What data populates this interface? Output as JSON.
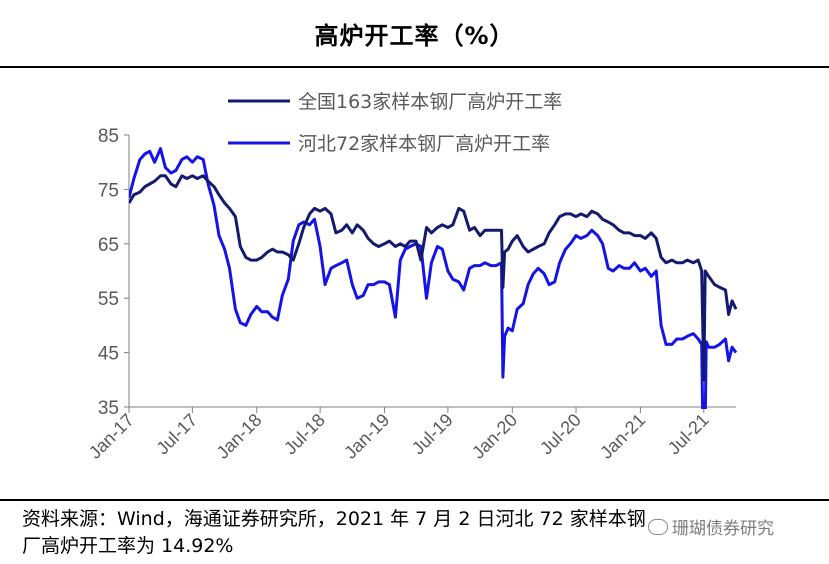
{
  "title": "高炉开工率（%）",
  "source_note_line1": "资料来源：Wind，海通证券研究所，2021 年 7 月 2 日河北 72 家样本钢",
  "source_note_line2": "厂高炉开工率为 14.92%",
  "watermark": "珊瑚债券研究",
  "colors": {
    "series1": "#141a6e",
    "series2": "#1414e6",
    "axis": "#7f7f7f",
    "text": "#595959"
  },
  "chart_data": {
    "type": "line",
    "title": "高炉开工率（%）",
    "xlabel": "",
    "ylabel": "",
    "ylim": [
      35,
      85
    ],
    "yticks": [
      35,
      45,
      55,
      65,
      75,
      85
    ],
    "xlim": [
      "2017-01",
      "2021-10"
    ],
    "xticks": [
      "Jan-17",
      "Jul-17",
      "Jan-18",
      "Jul-18",
      "Jan-19",
      "Jul-19",
      "Jan-20",
      "Jul-20",
      "Jan-21",
      "Jul-21"
    ],
    "legend": "top-center",
    "grid": false,
    "series": [
      {
        "name": "全国163家样本钢厂高炉开工率",
        "points": [
          [
            "2017-01-01",
            72.5
          ],
          [
            "2017-01-15",
            74.0
          ],
          [
            "2017-02-01",
            74.5
          ],
          [
            "2017-02-15",
            75.5
          ],
          [
            "2017-03-01",
            76.0
          ],
          [
            "2017-03-15",
            76.5
          ],
          [
            "2017-04-01",
            77.5
          ],
          [
            "2017-04-15",
            77.5
          ],
          [
            "2017-05-01",
            76.0
          ],
          [
            "2017-05-15",
            75.5
          ],
          [
            "2017-06-01",
            77.5
          ],
          [
            "2017-06-15",
            77.0
          ],
          [
            "2017-07-01",
            77.5
          ],
          [
            "2017-07-15",
            77.0
          ],
          [
            "2017-08-01",
            77.5
          ],
          [
            "2017-08-15",
            76.5
          ],
          [
            "2017-09-01",
            75.5
          ],
          [
            "2017-09-15",
            74.0
          ],
          [
            "2017-10-01",
            72.5
          ],
          [
            "2017-10-15",
            71.5
          ],
          [
            "2017-11-01",
            70.0
          ],
          [
            "2017-11-15",
            64.5
          ],
          [
            "2017-12-01",
            62.5
          ],
          [
            "2017-12-15",
            62.0
          ],
          [
            "2018-01-01",
            62.0
          ],
          [
            "2018-01-15",
            62.5
          ],
          [
            "2018-02-01",
            63.5
          ],
          [
            "2018-02-15",
            64.0
          ],
          [
            "2018-03-01",
            63.5
          ],
          [
            "2018-03-15",
            63.5
          ],
          [
            "2018-04-01",
            63.0
          ],
          [
            "2018-04-15",
            62.0
          ],
          [
            "2018-05-01",
            65.0
          ],
          [
            "2018-05-15",
            68.0
          ],
          [
            "2018-06-01",
            70.5
          ],
          [
            "2018-06-15",
            71.5
          ],
          [
            "2018-07-01",
            71.0
          ],
          [
            "2018-07-15",
            71.5
          ],
          [
            "2018-08-01",
            70.5
          ],
          [
            "2018-08-15",
            67.0
          ],
          [
            "2018-09-01",
            67.5
          ],
          [
            "2018-09-15",
            68.5
          ],
          [
            "2018-10-01",
            67.0
          ],
          [
            "2018-10-15",
            68.5
          ],
          [
            "2018-11-01",
            67.5
          ],
          [
            "2018-11-15",
            66.0
          ],
          [
            "2018-12-01",
            65.0
          ],
          [
            "2018-12-15",
            64.5
          ],
          [
            "2019-01-01",
            65.0
          ],
          [
            "2019-01-15",
            65.5
          ],
          [
            "2019-02-01",
            64.5
          ],
          [
            "2019-02-15",
            65.0
          ],
          [
            "2019-03-01",
            64.5
          ],
          [
            "2019-03-15",
            65.5
          ],
          [
            "2019-04-01",
            65.5
          ],
          [
            "2019-04-15",
            62.0
          ],
          [
            "2019-05-01",
            68.0
          ],
          [
            "2019-05-15",
            67.0
          ],
          [
            "2019-06-01",
            68.0
          ],
          [
            "2019-06-15",
            68.5
          ],
          [
            "2019-07-01",
            68.0
          ],
          [
            "2019-07-15",
            68.5
          ],
          [
            "2019-08-01",
            71.5
          ],
          [
            "2019-08-15",
            71.0
          ],
          [
            "2019-09-01",
            67.5
          ],
          [
            "2019-09-15",
            68.0
          ],
          [
            "2019-10-01",
            66.5
          ],
          [
            "2019-10-15",
            67.5
          ],
          [
            "2019-11-01",
            67.5
          ],
          [
            "2019-11-15",
            67.5
          ],
          [
            "2019-12-01",
            67.5
          ],
          [
            "2019-12-05",
            57.0
          ],
          [
            "2019-12-10",
            63.5
          ],
          [
            "2019-12-20",
            64.0
          ],
          [
            "2020-01-01",
            65.5
          ],
          [
            "2020-01-15",
            66.5
          ],
          [
            "2020-02-01",
            64.5
          ],
          [
            "2020-02-15",
            63.5
          ],
          [
            "2020-03-01",
            64.0
          ],
          [
            "2020-03-15",
            64.5
          ],
          [
            "2020-04-01",
            65.0
          ],
          [
            "2020-04-15",
            67.0
          ],
          [
            "2020-05-01",
            68.5
          ],
          [
            "2020-05-15",
            70.0
          ],
          [
            "2020-06-01",
            70.5
          ],
          [
            "2020-06-15",
            70.5
          ],
          [
            "2020-07-01",
            70.0
          ],
          [
            "2020-07-15",
            70.5
          ],
          [
            "2020-08-01",
            70.0
          ],
          [
            "2020-08-15",
            71.0
          ],
          [
            "2020-09-01",
            70.5
          ],
          [
            "2020-09-15",
            69.5
          ],
          [
            "2020-10-01",
            69.0
          ],
          [
            "2020-10-15",
            68.5
          ],
          [
            "2020-11-01",
            67.5
          ],
          [
            "2020-11-15",
            67.0
          ],
          [
            "2020-12-01",
            67.0
          ],
          [
            "2020-12-15",
            66.5
          ],
          [
            "2021-01-01",
            66.5
          ],
          [
            "2021-01-15",
            66.0
          ],
          [
            "2021-02-01",
            67.0
          ],
          [
            "2021-02-15",
            66.0
          ],
          [
            "2021-03-01",
            62.5
          ],
          [
            "2021-03-15",
            61.5
          ],
          [
            "2021-04-01",
            62.0
          ],
          [
            "2021-04-15",
            61.5
          ],
          [
            "2021-05-01",
            61.5
          ],
          [
            "2021-05-15",
            62.0
          ],
          [
            "2021-06-01",
            61.5
          ],
          [
            "2021-06-15",
            62.0
          ],
          [
            "2021-06-25",
            60.0
          ],
          [
            "2021-07-01",
            40.0
          ],
          [
            "2021-07-05",
            60.0
          ],
          [
            "2021-07-15",
            59.0
          ],
          [
            "2021-08-01",
            57.5
          ],
          [
            "2021-08-15",
            57.0
          ],
          [
            "2021-09-01",
            56.5
          ],
          [
            "2021-09-10",
            52.0
          ],
          [
            "2021-09-20",
            54.5
          ],
          [
            "2021-10-01",
            53.0
          ]
        ]
      },
      {
        "name": "河北72家样本钢厂高炉开工率",
        "points": [
          [
            "2017-01-01",
            73.5
          ],
          [
            "2017-01-15",
            77.0
          ],
          [
            "2017-02-01",
            80.5
          ],
          [
            "2017-02-15",
            81.5
          ],
          [
            "2017-03-01",
            82.0
          ],
          [
            "2017-03-15",
            80.0
          ],
          [
            "2017-04-01",
            82.5
          ],
          [
            "2017-04-15",
            79.0
          ],
          [
            "2017-05-01",
            78.0
          ],
          [
            "2017-05-15",
            78.5
          ],
          [
            "2017-06-01",
            80.5
          ],
          [
            "2017-06-15",
            81.0
          ],
          [
            "2017-07-01",
            80.0
          ],
          [
            "2017-07-15",
            81.0
          ],
          [
            "2017-08-01",
            80.5
          ],
          [
            "2017-08-15",
            76.0
          ],
          [
            "2017-09-01",
            72.0
          ],
          [
            "2017-09-15",
            66.5
          ],
          [
            "2017-10-01",
            64.0
          ],
          [
            "2017-10-15",
            60.5
          ],
          [
            "2017-11-01",
            53.0
          ],
          [
            "2017-11-15",
            50.5
          ],
          [
            "2017-12-01",
            50.0
          ],
          [
            "2017-12-15",
            52.0
          ],
          [
            "2018-01-01",
            53.5
          ],
          [
            "2018-01-15",
            52.5
          ],
          [
            "2018-02-01",
            52.5
          ],
          [
            "2018-02-15",
            51.5
          ],
          [
            "2018-03-01",
            51.0
          ],
          [
            "2018-03-15",
            55.5
          ],
          [
            "2018-04-01",
            58.5
          ],
          [
            "2018-04-15",
            65.5
          ],
          [
            "2018-05-01",
            68.5
          ],
          [
            "2018-05-15",
            69.0
          ],
          [
            "2018-06-01",
            68.5
          ],
          [
            "2018-06-15",
            69.5
          ],
          [
            "2018-07-01",
            64.5
          ],
          [
            "2018-07-15",
            57.5
          ],
          [
            "2018-08-01",
            60.5
          ],
          [
            "2018-08-15",
            61.0
          ],
          [
            "2018-09-01",
            61.5
          ],
          [
            "2018-09-15",
            62.0
          ],
          [
            "2018-10-01",
            57.5
          ],
          [
            "2018-10-15",
            55.0
          ],
          [
            "2018-11-01",
            55.5
          ],
          [
            "2018-11-15",
            57.5
          ],
          [
            "2018-12-01",
            57.5
          ],
          [
            "2018-12-15",
            58.0
          ],
          [
            "2019-01-01",
            58.0
          ],
          [
            "2019-01-15",
            57.5
          ],
          [
            "2019-02-01",
            51.5
          ],
          [
            "2019-02-15",
            62.0
          ],
          [
            "2019-03-01",
            64.0
          ],
          [
            "2019-03-15",
            64.5
          ],
          [
            "2019-04-01",
            65.0
          ],
          [
            "2019-04-15",
            64.5
          ],
          [
            "2019-05-01",
            55.0
          ],
          [
            "2019-05-15",
            61.5
          ],
          [
            "2019-06-01",
            64.5
          ],
          [
            "2019-06-15",
            64.0
          ],
          [
            "2019-07-01",
            60.0
          ],
          [
            "2019-07-15",
            58.5
          ],
          [
            "2019-08-01",
            58.0
          ],
          [
            "2019-08-15",
            56.5
          ],
          [
            "2019-09-01",
            60.5
          ],
          [
            "2019-09-15",
            61.0
          ],
          [
            "2019-10-01",
            61.0
          ],
          [
            "2019-10-15",
            61.5
          ],
          [
            "2019-11-01",
            61.0
          ],
          [
            "2019-11-15",
            61.0
          ],
          [
            "2019-12-01",
            61.5
          ],
          [
            "2019-12-05",
            40.5
          ],
          [
            "2019-12-10",
            48.0
          ],
          [
            "2019-12-20",
            49.5
          ],
          [
            "2020-01-01",
            49.0
          ],
          [
            "2020-01-15",
            53.0
          ],
          [
            "2020-02-01",
            54.0
          ],
          [
            "2020-02-15",
            57.5
          ],
          [
            "2020-03-01",
            59.5
          ],
          [
            "2020-03-15",
            60.5
          ],
          [
            "2020-04-01",
            59.5
          ],
          [
            "2020-04-15",
            57.5
          ],
          [
            "2020-05-01",
            58.0
          ],
          [
            "2020-05-15",
            61.5
          ],
          [
            "2020-06-01",
            64.0
          ],
          [
            "2020-06-15",
            65.0
          ],
          [
            "2020-07-01",
            66.5
          ],
          [
            "2020-07-15",
            66.0
          ],
          [
            "2020-08-01",
            66.5
          ],
          [
            "2020-08-15",
            67.5
          ],
          [
            "2020-09-01",
            66.5
          ],
          [
            "2020-09-15",
            65.0
          ],
          [
            "2020-10-01",
            60.5
          ],
          [
            "2020-10-15",
            60.0
          ],
          [
            "2020-11-01",
            61.0
          ],
          [
            "2020-11-15",
            60.5
          ],
          [
            "2020-12-01",
            60.5
          ],
          [
            "2020-12-15",
            61.5
          ],
          [
            "2021-01-01",
            60.0
          ],
          [
            "2021-01-15",
            60.5
          ],
          [
            "2021-02-01",
            59.0
          ],
          [
            "2021-02-15",
            60.0
          ],
          [
            "2021-03-01",
            50.0
          ],
          [
            "2021-03-15",
            46.5
          ],
          [
            "2021-04-01",
            46.5
          ],
          [
            "2021-04-15",
            47.5
          ],
          [
            "2021-05-01",
            47.5
          ],
          [
            "2021-05-15",
            48.0
          ],
          [
            "2021-06-01",
            48.5
          ],
          [
            "2021-06-15",
            47.5
          ],
          [
            "2021-06-25",
            46.5
          ],
          [
            "2021-07-02",
            14.92
          ],
          [
            "2021-07-08",
            47.0
          ],
          [
            "2021-07-15",
            46.0
          ],
          [
            "2021-08-01",
            46.0
          ],
          [
            "2021-08-15",
            46.5
          ],
          [
            "2021-09-01",
            47.5
          ],
          [
            "2021-09-10",
            43.5
          ],
          [
            "2021-09-20",
            46.0
          ],
          [
            "2021-10-01",
            45.0
          ]
        ]
      }
    ]
  }
}
